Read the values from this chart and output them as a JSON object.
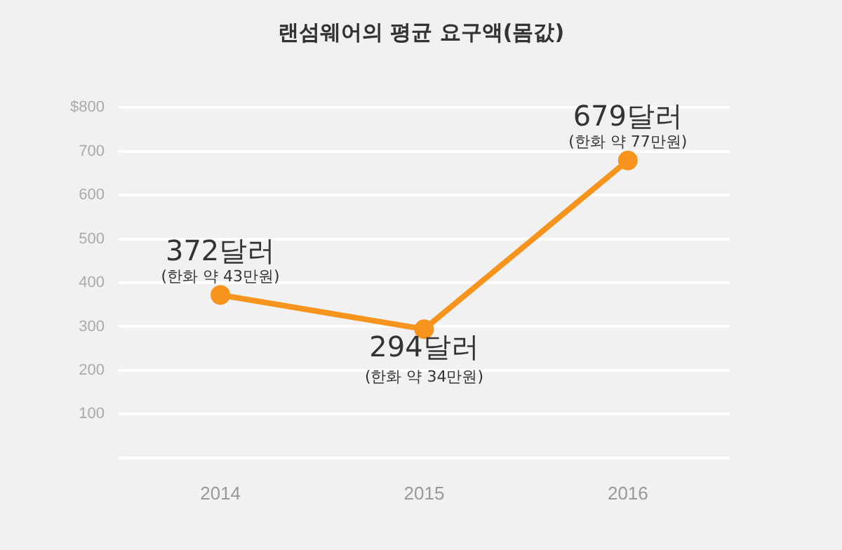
{
  "chart_data": {
    "type": "line",
    "title": "랜섬웨어의 평균 요구액(몸값)",
    "categories": [
      "2014",
      "2015",
      "2016"
    ],
    "series": [
      {
        "color": "#f7941d",
        "values": [
          372,
          294,
          679
        ]
      }
    ],
    "value_labels": [
      "372달러",
      "294달러",
      "679달러"
    ],
    "annotations": [
      {
        "text": "(한화 약 43만원)",
        "x": "2014",
        "y": 372
      },
      {
        "text": "(한화 약 34만원)",
        "x": "2015",
        "y": 294
      },
      {
        "text": "(한화 약 77만원)",
        "x": "2016",
        "y": 679
      }
    ],
    "ylim": [
      0,
      800
    ],
    "yticks": [
      {
        "value": 0,
        "label": null
      },
      100,
      200,
      300,
      400,
      500,
      600,
      700,
      {
        "value": 800,
        "label": "$800"
      }
    ],
    "grid": "y",
    "legend": false,
    "marker": "circle",
    "line_style": "solid"
  }
}
